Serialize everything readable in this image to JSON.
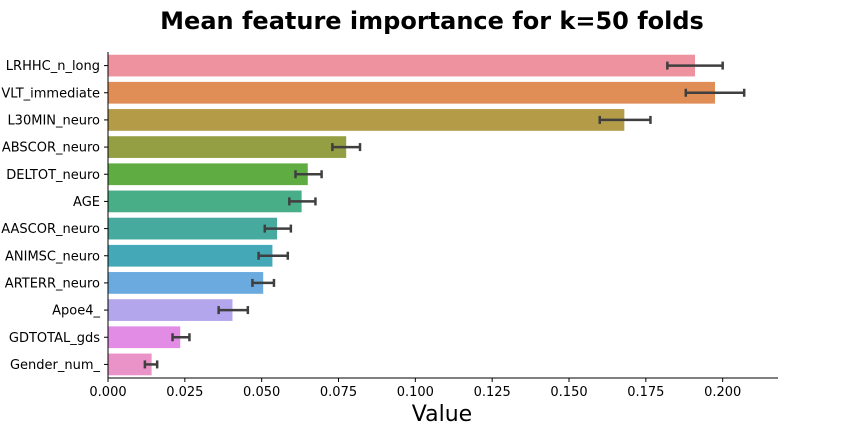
{
  "chart_data": {
    "type": "bar",
    "orientation": "horizontal",
    "title": "Mean feature importance for k=50 folds",
    "xlabel": "Value",
    "ylabel": "",
    "xlim": [
      0.0,
      0.218
    ],
    "xticks": [
      "0.000",
      "0.025",
      "0.050",
      "0.075",
      "0.100",
      "0.125",
      "0.150",
      "0.175",
      "0.200"
    ],
    "grid": false,
    "categories": [
      "LRHHC_n_long",
      "VLT_immediate",
      "L30MIN_neuro",
      "ABSCOR_neuro",
      "DELTOT_neuro",
      "AGE",
      "AASCOR_neuro",
      "ANIMSC_neuro",
      "ARTERR_neuro",
      "Apoe4_",
      "GDTOTAL_gds",
      "Gender_num_"
    ],
    "values": [
      0.191,
      0.1975,
      0.168,
      0.0775,
      0.065,
      0.063,
      0.055,
      0.0535,
      0.0505,
      0.0405,
      0.0235,
      0.0142
    ],
    "error_low": [
      0.182,
      0.188,
      0.16,
      0.073,
      0.061,
      0.059,
      0.051,
      0.049,
      0.047,
      0.036,
      0.021,
      0.012
    ],
    "error_high": [
      0.2,
      0.207,
      0.1765,
      0.082,
      0.0695,
      0.0675,
      0.0595,
      0.0585,
      0.054,
      0.0455,
      0.0265,
      0.016
    ],
    "colors": [
      "#ee929f",
      "#e08e56",
      "#b49b47",
      "#949f44",
      "#5fac43",
      "#47ae88",
      "#47aa9e",
      "#45a8b6",
      "#6aaadf",
      "#b4a6ed",
      "#e28ce6",
      "#ea93c8"
    ]
  }
}
